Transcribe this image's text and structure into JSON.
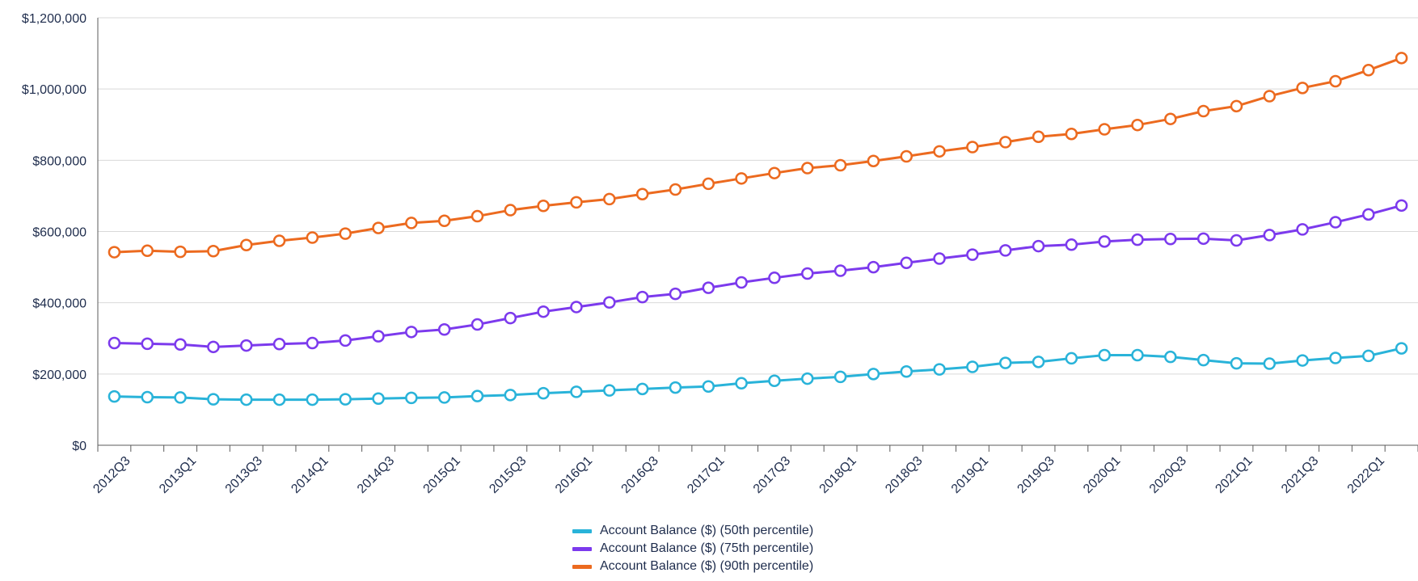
{
  "chart_data": {
    "type": "line",
    "title": "",
    "xlabel": "",
    "ylabel": "",
    "ylim": [
      0,
      1200000
    ],
    "yticks": [
      0,
      200000,
      400000,
      600000,
      800000,
      1000000,
      1200000
    ],
    "ytick_labels": [
      "$0",
      "$200,000",
      "$400,000",
      "$600,000",
      "$800,000",
      "$1,000,000",
      "$1,200,000"
    ],
    "grid": "horizontal",
    "legend_position": "bottom-center",
    "x": [
      "2012Q3",
      "2012Q4",
      "2013Q1",
      "2013Q2",
      "2013Q3",
      "2013Q4",
      "2014Q1",
      "2014Q2",
      "2014Q3",
      "2014Q4",
      "2015Q1",
      "2015Q2",
      "2015Q3",
      "2015Q4",
      "2016Q1",
      "2016Q2",
      "2016Q3",
      "2016Q4",
      "2017Q1",
      "2017Q2",
      "2017Q3",
      "2017Q4",
      "2018Q1",
      "2018Q2",
      "2018Q3",
      "2018Q4",
      "2019Q1",
      "2019Q2",
      "2019Q3",
      "2019Q4",
      "2020Q1",
      "2020Q2",
      "2020Q3",
      "2020Q4",
      "2021Q1",
      "2021Q2",
      "2021Q3",
      "2021Q4",
      "2022Q1",
      "2022Q2"
    ],
    "x_tick_labels": [
      "2012Q3",
      "",
      "2013Q1",
      "",
      "2013Q3",
      "",
      "2014Q1",
      "",
      "2014Q3",
      "",
      "2015Q1",
      "",
      "2015Q3",
      "",
      "2016Q1",
      "",
      "2016Q3",
      "",
      "2017Q1",
      "",
      "2017Q3",
      "",
      "2018Q1",
      "",
      "2018Q3",
      "",
      "2019Q1",
      "",
      "2019Q3",
      "",
      "2020Q1",
      "",
      "2020Q3",
      "",
      "2021Q1",
      "",
      "2021Q3",
      "",
      "2022Q1",
      ""
    ],
    "series": [
      {
        "name": "Account Balance ($) (50th percentile)",
        "color": "#29b3d9",
        "values": [
          137000,
          135000,
          134000,
          129000,
          128000,
          128000,
          128000,
          129000,
          131000,
          133000,
          134000,
          138000,
          141000,
          146000,
          150000,
          154000,
          158000,
          162000,
          165000,
          174000,
          181000,
          187000,
          192000,
          200000,
          207000,
          213000,
          220000,
          231000,
          234000,
          244000,
          253000,
          253000,
          248000,
          239000,
          230000,
          229000,
          238000,
          245000,
          251000,
          272000
        ]
      },
      {
        "name": "Account Balance ($) (75th percentile)",
        "color": "#7c3aed",
        "values": [
          287000,
          285000,
          283000,
          276000,
          280000,
          284000,
          287000,
          294000,
          306000,
          318000,
          325000,
          339000,
          357000,
          375000,
          388000,
          401000,
          416000,
          425000,
          442000,
          457000,
          470000,
          482000,
          490000,
          500000,
          512000,
          524000,
          535000,
          547000,
          559000,
          563000,
          572000,
          577000,
          579000,
          580000,
          575000,
          590000,
          606000,
          626000,
          648000,
          673000
        ]
      },
      {
        "name": "Account Balance ($) (90th percentile)",
        "color": "#ec6a1f",
        "values": [
          542000,
          546000,
          543000,
          545000,
          562000,
          574000,
          583000,
          594000,
          610000,
          624000,
          630000,
          643000,
          660000,
          672000,
          682000,
          691000,
          705000,
          718000,
          734000,
          749000,
          764000,
          778000,
          786000,
          798000,
          811000,
          825000,
          837000,
          851000,
          866000,
          874000,
          887000,
          899000,
          916000,
          938000,
          952000,
          980000,
          1003000,
          1022000,
          1053000,
          1087000
        ]
      }
    ]
  }
}
